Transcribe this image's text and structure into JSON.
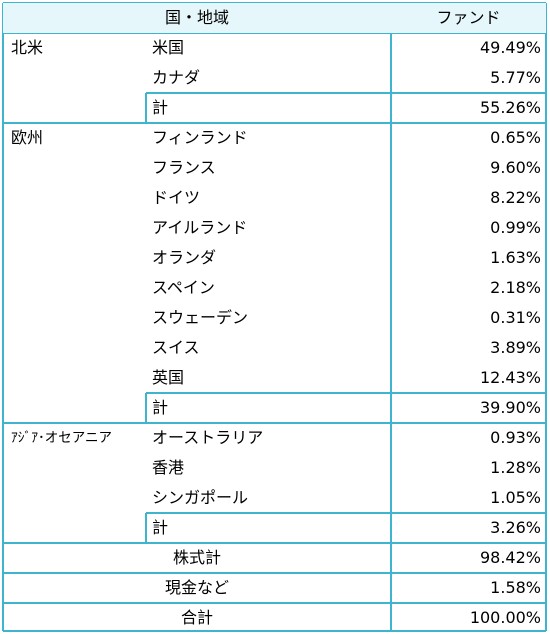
{
  "header": {
    "region": "国・地域",
    "fund": "ファンド"
  },
  "groups": [
    {
      "region": "北米",
      "rows": [
        {
          "name": "米国",
          "value": "49.49%"
        },
        {
          "name": "カナダ",
          "value": "5.77%"
        }
      ],
      "subtotal_label": "計",
      "subtotal": "55.26%"
    },
    {
      "region": "欧州",
      "rows": [
        {
          "name": "フィンランド",
          "value": "0.65%"
        },
        {
          "name": "フランス",
          "value": "9.60%"
        },
        {
          "name": "ドイツ",
          "value": "8.22%"
        },
        {
          "name": "アイルランド",
          "value": "0.99%"
        },
        {
          "name": "オランダ",
          "value": "1.63%"
        },
        {
          "name": "スペイン",
          "value": "2.18%"
        },
        {
          "name": "スウェーデン",
          "value": "0.31%"
        },
        {
          "name": "スイス",
          "value": "3.89%"
        },
        {
          "name": "英国",
          "value": "12.43%"
        }
      ],
      "subtotal_label": "計",
      "subtotal": "39.90%"
    },
    {
      "region": "ｱｼﾞｱ･オセアニア",
      "rows": [
        {
          "name": "オーストラリア",
          "value": "0.93%"
        },
        {
          "name": "香港",
          "value": "1.28%"
        },
        {
          "name": "シンガポール",
          "value": "1.05%"
        }
      ],
      "subtotal_label": "計",
      "subtotal": "3.26%"
    }
  ],
  "totals": [
    {
      "label": "株式計",
      "value": "98.42%"
    },
    {
      "label": "現金など",
      "value": "1.58%"
    },
    {
      "label": "合計",
      "value": "100.00%"
    }
  ],
  "colors": {
    "border": "#3fb4cf",
    "header_bg": "#e6f7fb"
  }
}
